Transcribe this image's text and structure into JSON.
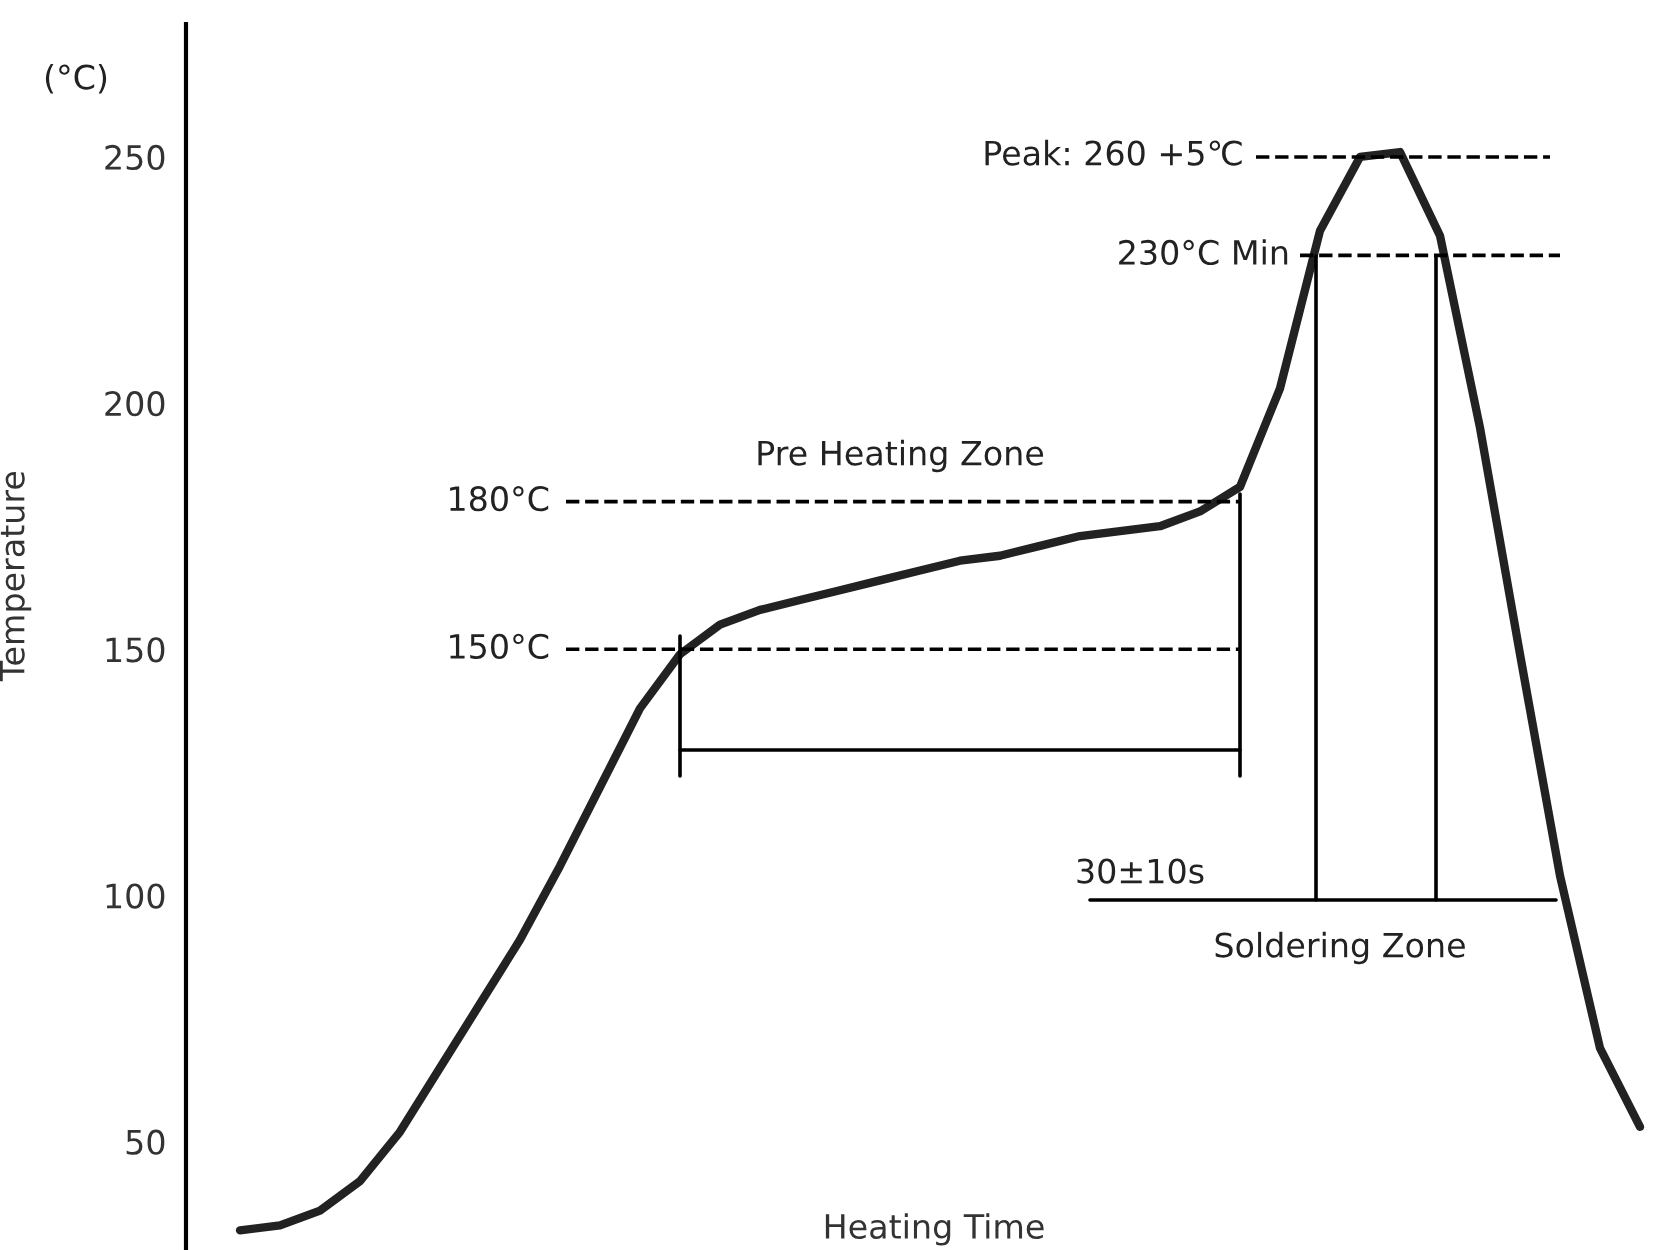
{
  "chart_data": {
    "type": "line",
    "ylabel": "Temperature",
    "xlabel": "Heating Time",
    "categories": [
      null,
      null,
      null,
      null,
      null,
      null,
      null,
      null,
      null,
      null,
      null,
      null,
      null,
      null,
      null,
      null,
      null,
      null,
      null,
      null,
      null,
      null,
      null,
      null,
      null,
      null,
      null,
      null,
      null,
      null,
      null,
      null,
      null,
      null,
      null,
      null
    ],
    "series": [
      {
        "color": "#222222",
        "values": [
          32,
          33,
          36,
          42,
          52,
          65,
          78,
          91,
          106,
          122,
          138,
          149,
          155,
          158,
          160,
          162,
          164,
          166,
          168,
          169,
          171,
          173,
          174,
          175,
          178,
          183,
          203,
          235,
          250,
          251,
          234,
          195,
          149,
          104,
          69,
          53
        ]
      }
    ],
    "ylim": [
      28,
      277
    ],
    "yticks": [
      50,
      100,
      150,
      200,
      250
    ],
    "tick_labels": "y",
    "grid": false,
    "marker": "none",
    "line_style": "solid",
    "ref_lines": [
      {
        "axis": "y",
        "value": 150,
        "label": "150°C",
        "line_style": "dashed",
        "color": "#000000"
      },
      {
        "axis": "y",
        "value": 180,
        "label": "180°C",
        "line_style": "dashed",
        "color": "#000000"
      },
      {
        "axis": "y",
        "value": 230,
        "label": "230°C Min",
        "line_style": "dashed",
        "color": "#000000"
      },
      {
        "axis": "y",
        "value": 250,
        "line_style": "dashed",
        "color": "#000000"
      }
    ],
    "annotations": [
      "(°C)",
      "Pre Heating Zone",
      "30±10s",
      "Soldering Zone",
      "Peak: 260 +5℃"
    ]
  }
}
